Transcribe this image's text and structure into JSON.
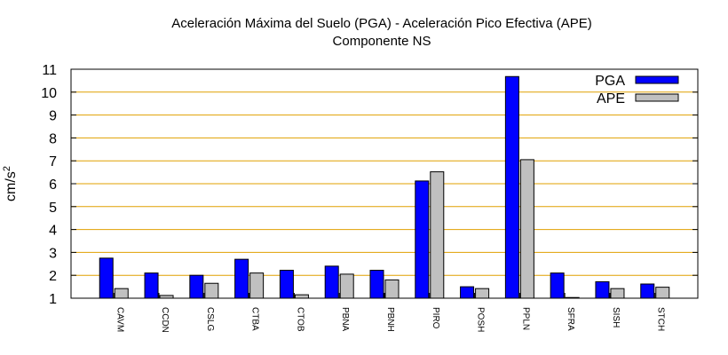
{
  "chart_data": {
    "type": "bar",
    "title": "Aceleración Máxima del Suelo (PGA) -  Aceleración Pico Efectiva (APE)",
    "subtitle": "Componente NS",
    "ylabel": "cm/s",
    "ylabel_sup": "2",
    "xlabel": "",
    "ylim": [
      1,
      11
    ],
    "yticks": [
      1,
      2,
      3,
      4,
      5,
      6,
      7,
      8,
      9,
      10,
      11
    ],
    "grid": "horizontal",
    "legend_position": "top-right",
    "categories": [
      "CAVM",
      "CCDN",
      "CSLG",
      "CTBA",
      "CTOB",
      "PBNA",
      "PBNH",
      "PIRO",
      "POSH",
      "PPLN",
      "SFRA",
      "SISH",
      "STCH"
    ],
    "series": [
      {
        "name": "PGA",
        "color": "#0000ff",
        "values": [
          2.75,
          2.1,
          2.0,
          2.7,
          2.22,
          2.4,
          2.22,
          6.12,
          1.5,
          10.68,
          2.1,
          1.72,
          1.62
        ]
      },
      {
        "name": "APE",
        "color": "#c0c0c0",
        "values": [
          1.42,
          1.12,
          1.65,
          2.1,
          1.15,
          2.05,
          1.8,
          6.52,
          1.42,
          7.05,
          1.03,
          1.42,
          1.48
        ]
      }
    ],
    "colors": {
      "grid": "#e0a000",
      "axis": "#000000"
    }
  }
}
